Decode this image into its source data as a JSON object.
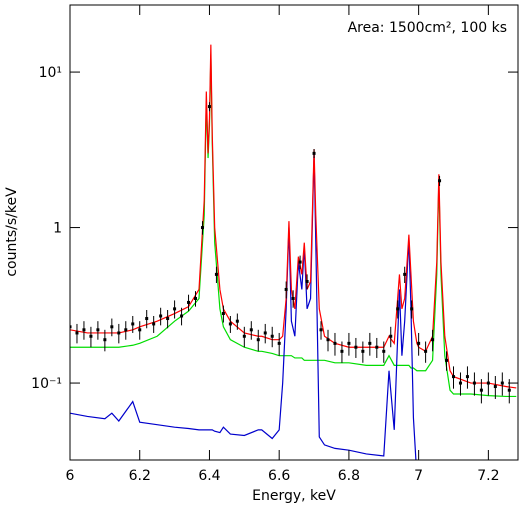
{
  "chart_data": {
    "type": "line",
    "annotation": "Area: 1500cm², 100 ks",
    "xlabel": "Energy, keV",
    "ylabel": "counts/s/keV",
    "log_y": true,
    "xlim": [
      6,
      7.285
    ],
    "ylim": [
      0.032,
      27
    ],
    "xticks": [
      6,
      6.2,
      6.4,
      6.6,
      6.8,
      7,
      7.2
    ],
    "yticks": [
      {
        "value": 0.1,
        "label": "10⁻¹"
      },
      1,
      {
        "value": 10,
        "label": "10¹"
      }
    ],
    "x": [
      6.0,
      6.05,
      6.1,
      6.12,
      6.14,
      6.18,
      6.2,
      6.25,
      6.3,
      6.34,
      6.37,
      6.385,
      6.391,
      6.396,
      6.4,
      6.404,
      6.408,
      6.415,
      6.43,
      6.44,
      6.46,
      6.5,
      6.54,
      6.55,
      6.58,
      6.6,
      6.61,
      6.62,
      6.628,
      6.635,
      6.645,
      6.655,
      6.665,
      6.672,
      6.68,
      6.69,
      6.7,
      6.705,
      6.715,
      6.73,
      6.76,
      6.8,
      6.85,
      6.9,
      6.915,
      6.93,
      6.945,
      6.952,
      6.96,
      6.972,
      6.978,
      6.985,
      6.995,
      7.0,
      7.02,
      7.04,
      7.052,
      7.058,
      7.064,
      7.075,
      7.09,
      7.1,
      7.15,
      7.2,
      7.25,
      7.28
    ],
    "series": [
      {
        "color": "#00dd00",
        "values": [
          0.17,
          0.17,
          0.17,
          0.17,
          0.17,
          0.175,
          0.18,
          0.2,
          0.25,
          0.29,
          0.35,
          1.2,
          6.5,
          2.8,
          4.5,
          13,
          3.5,
          0.8,
          0.3,
          0.23,
          0.19,
          0.17,
          0.16,
          0.16,
          0.155,
          0.15,
          0.15,
          0.15,
          0.15,
          0.15,
          0.145,
          0.145,
          0.145,
          0.14,
          0.14,
          0.14,
          0.14,
          0.14,
          0.14,
          0.14,
          0.135,
          0.135,
          0.13,
          0.13,
          0.15,
          0.13,
          0.13,
          0.13,
          0.13,
          0.13,
          0.125,
          0.125,
          0.12,
          0.12,
          0.12,
          0.14,
          0.5,
          2.0,
          0.5,
          0.15,
          0.09,
          0.085,
          0.085,
          0.083,
          0.082,
          0.082
        ]
      },
      {
        "color": "#0000cc",
        "values": [
          0.064,
          0.061,
          0.059,
          0.064,
          0.057,
          0.076,
          0.056,
          0.054,
          0.052,
          0.051,
          0.05,
          0.05,
          0.05,
          0.05,
          0.05,
          0.05,
          0.05,
          0.049,
          0.048,
          0.052,
          0.047,
          0.046,
          0.05,
          0.05,
          0.044,
          0.05,
          0.1,
          0.3,
          1.0,
          0.25,
          0.2,
          0.6,
          0.4,
          0.75,
          0.3,
          0.35,
          3.0,
          0.8,
          0.045,
          0.04,
          0.038,
          0.037,
          0.035,
          0.034,
          0.12,
          0.05,
          0.4,
          0.15,
          0.25,
          0.85,
          0.3,
          0.06,
          0.025,
          null,
          null,
          null,
          null,
          null,
          null,
          null,
          null,
          null,
          null,
          null,
          null,
          null
        ]
      },
      {
        "color": "#ff0000",
        "values": [
          0.22,
          0.21,
          0.21,
          0.21,
          0.21,
          0.22,
          0.23,
          0.25,
          0.28,
          0.31,
          0.4,
          1.5,
          7.5,
          3,
          5,
          15,
          4,
          1,
          0.4,
          0.3,
          0.25,
          0.21,
          0.2,
          0.2,
          0.19,
          0.19,
          0.2,
          0.35,
          1.1,
          0.4,
          0.3,
          0.65,
          0.5,
          0.8,
          0.4,
          0.45,
          3.2,
          1.2,
          0.3,
          0.2,
          0.18,
          0.17,
          0.17,
          0.17,
          0.2,
          0.18,
          0.5,
          0.3,
          0.35,
          0.9,
          0.5,
          0.25,
          0.18,
          0.17,
          0.16,
          0.2,
          0.6,
          2.2,
          0.6,
          0.2,
          0.12,
          0.11,
          0.1,
          0.1,
          0.095,
          0.093
        ]
      },
      {
        "type": "scatter",
        "color": "#000000",
        "x": [
          6.0,
          6.02,
          6.04,
          6.06,
          6.08,
          6.1,
          6.12,
          6.14,
          6.16,
          6.18,
          6.2,
          6.22,
          6.24,
          6.26,
          6.28,
          6.3,
          6.32,
          6.34,
          6.36,
          6.38,
          6.4,
          6.42,
          6.44,
          6.46,
          6.48,
          6.5,
          6.52,
          6.54,
          6.56,
          6.58,
          6.6,
          6.62,
          6.64,
          6.66,
          6.68,
          6.7,
          6.72,
          6.74,
          6.76,
          6.78,
          6.8,
          6.82,
          6.84,
          6.86,
          6.88,
          6.9,
          6.92,
          6.94,
          6.96,
          6.98,
          7.0,
          7.02,
          7.04,
          7.06,
          7.08,
          7.1,
          7.12,
          7.14,
          7.16,
          7.18,
          7.2,
          7.22,
          7.24,
          7.26
        ],
        "values": [
          0.23,
          0.21,
          0.22,
          0.2,
          0.22,
          0.19,
          0.23,
          0.21,
          0.22,
          0.24,
          0.22,
          0.26,
          0.24,
          0.27,
          0.26,
          0.3,
          0.27,
          0.33,
          0.35,
          1.0,
          6.0,
          0.5,
          0.28,
          0.24,
          0.25,
          0.2,
          0.22,
          0.19,
          0.21,
          0.2,
          0.18,
          0.4,
          0.35,
          0.6,
          0.45,
          3.0,
          0.22,
          0.19,
          0.18,
          0.16,
          0.18,
          0.17,
          0.16,
          0.18,
          0.17,
          0.16,
          0.2,
          0.3,
          0.5,
          0.3,
          0.18,
          0.16,
          0.19,
          2.0,
          0.14,
          0.11,
          0.1,
          0.11,
          0.1,
          0.09,
          0.1,
          0.095,
          0.1,
          0.09
        ],
        "errors": [
          0.03,
          0.03,
          0.03,
          0.03,
          0.03,
          0.03,
          0.03,
          0.03,
          0.03,
          0.03,
          0.03,
          0.035,
          0.03,
          0.035,
          0.035,
          0.04,
          0.035,
          0.04,
          0.04,
          0.1,
          0.4,
          0.06,
          0.035,
          0.03,
          0.03,
          0.03,
          0.03,
          0.03,
          0.03,
          0.03,
          0.03,
          0.05,
          0.045,
          0.06,
          0.05,
          0.2,
          0.03,
          0.03,
          0.03,
          0.025,
          0.03,
          0.025,
          0.025,
          0.03,
          0.025,
          0.025,
          0.03,
          0.04,
          0.06,
          0.04,
          0.03,
          0.025,
          0.03,
          0.15,
          0.02,
          0.018,
          0.017,
          0.018,
          0.017,
          0.016,
          0.017,
          0.016,
          0.017,
          0.016
        ]
      }
    ]
  }
}
